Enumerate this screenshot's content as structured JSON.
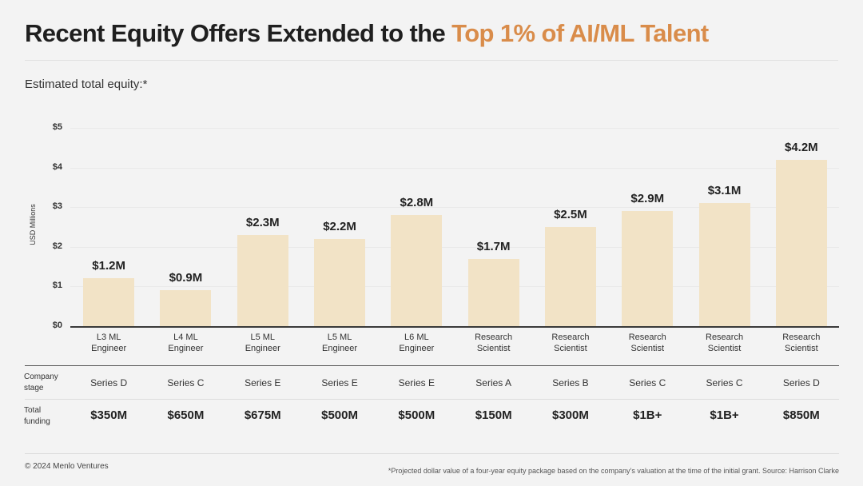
{
  "header": {
    "title_main": "Recent Equity Offers Extended to the ",
    "title_highlight": "Top 1% of AI/ML Talent",
    "subtitle": "Estimated total equity:*"
  },
  "colors": {
    "accent": "#d98c4a",
    "bar": "#f2e3c6",
    "background": "#f3f3f3"
  },
  "chart_data": {
    "type": "bar",
    "ylabel": "USD Millions",
    "ylim": [
      0,
      5
    ],
    "yticks": [
      0,
      1,
      2,
      3,
      4,
      5
    ],
    "ytick_labels": [
      "$0",
      "$1",
      "$2",
      "$3",
      "$4",
      "$5"
    ],
    "categories": [
      [
        "L3 ML",
        "Engineer"
      ],
      [
        "L4 ML",
        "Engineer"
      ],
      [
        "L5 ML",
        "Engineer"
      ],
      [
        "L5 ML",
        "Engineer"
      ],
      [
        "L6 ML",
        "Engineer"
      ],
      [
        "Research",
        "Scientist"
      ],
      [
        "Research",
        "Scientist"
      ],
      [
        "Research",
        "Scientist"
      ],
      [
        "Research",
        "Scientist"
      ],
      [
        "Research",
        "Scientist"
      ]
    ],
    "values": [
      1.2,
      0.9,
      2.3,
      2.2,
      2.8,
      1.7,
      2.5,
      2.9,
      3.1,
      4.2
    ],
    "value_labels": [
      "$1.2M",
      "$0.9M",
      "$2.3M",
      "$2.2M",
      "$2.8M",
      "$1.7M",
      "$2.5M",
      "$2.9M",
      "$3.1M",
      "$4.2M"
    ]
  },
  "table": {
    "stage_label": [
      "Company",
      "stage"
    ],
    "funding_label": [
      "Total",
      "funding"
    ],
    "company_stage": [
      "Series D",
      "Series C",
      "Series E",
      "Series E",
      "Series E",
      "Series A",
      "Series B",
      "Series C",
      "Series C",
      "Series D"
    ],
    "total_funding": [
      "$350M",
      "$650M",
      "$675M",
      "$500M",
      "$500M",
      "$150M",
      "$300M",
      "$1B+",
      "$1B+",
      "$850M"
    ]
  },
  "footer": {
    "copyright": "© 2024 Menlo Ventures",
    "note": "*Projected dollar value of a four-year equity package based on the company’s valuation at the time of the initial grant. Source: Harrison Clarke"
  }
}
